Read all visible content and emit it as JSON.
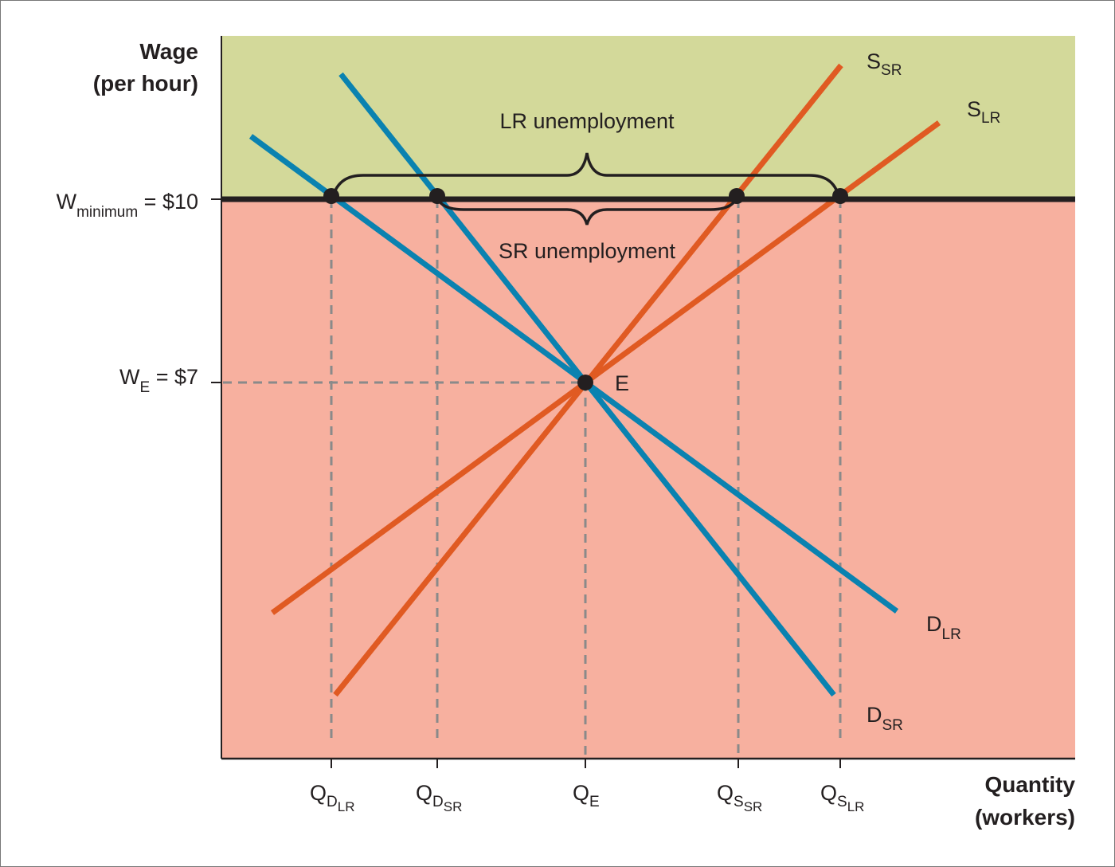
{
  "colors": {
    "above_minimum_region": "#d3d99a",
    "below_minimum_region": "#f7b09f",
    "demand": "#0a82b0",
    "supply": "#e05a22",
    "minimum_wage_line": "#231f20",
    "guides": "#8a8a8a"
  },
  "axes": {
    "y_label_line1": "Wage",
    "y_label_line2": "(per hour)",
    "x_label_line1": "Quantity",
    "x_label_line2": "(workers)"
  },
  "y_ticks": {
    "minimum": {
      "main": "W",
      "sub": "minimum",
      "rest": " = $10",
      "value": 10
    },
    "equilibrium": {
      "main": "W",
      "sub": "E",
      "rest": " = $7",
      "value": 7
    }
  },
  "x_ticks": [
    {
      "main": "Q",
      "sub": "D",
      "subsub": "LR"
    },
    {
      "main": "Q",
      "sub": "D",
      "subsub": "SR"
    },
    {
      "main": "Q",
      "sub": "E",
      "subsub": ""
    },
    {
      "main": "Q",
      "sub": "S",
      "subsub": "SR"
    },
    {
      "main": "Q",
      "sub": "S",
      "subsub": "LR"
    }
  ],
  "curves": {
    "s_sr": {
      "main": "S",
      "sub": "SR"
    },
    "s_lr": {
      "main": "S",
      "sub": "LR"
    },
    "d_lr": {
      "main": "D",
      "sub": "LR"
    },
    "d_sr": {
      "main": "D",
      "sub": "SR"
    }
  },
  "equilibrium_label": "E",
  "annotations": {
    "lr": "LR unemployment",
    "sr": "SR unemployment"
  }
}
